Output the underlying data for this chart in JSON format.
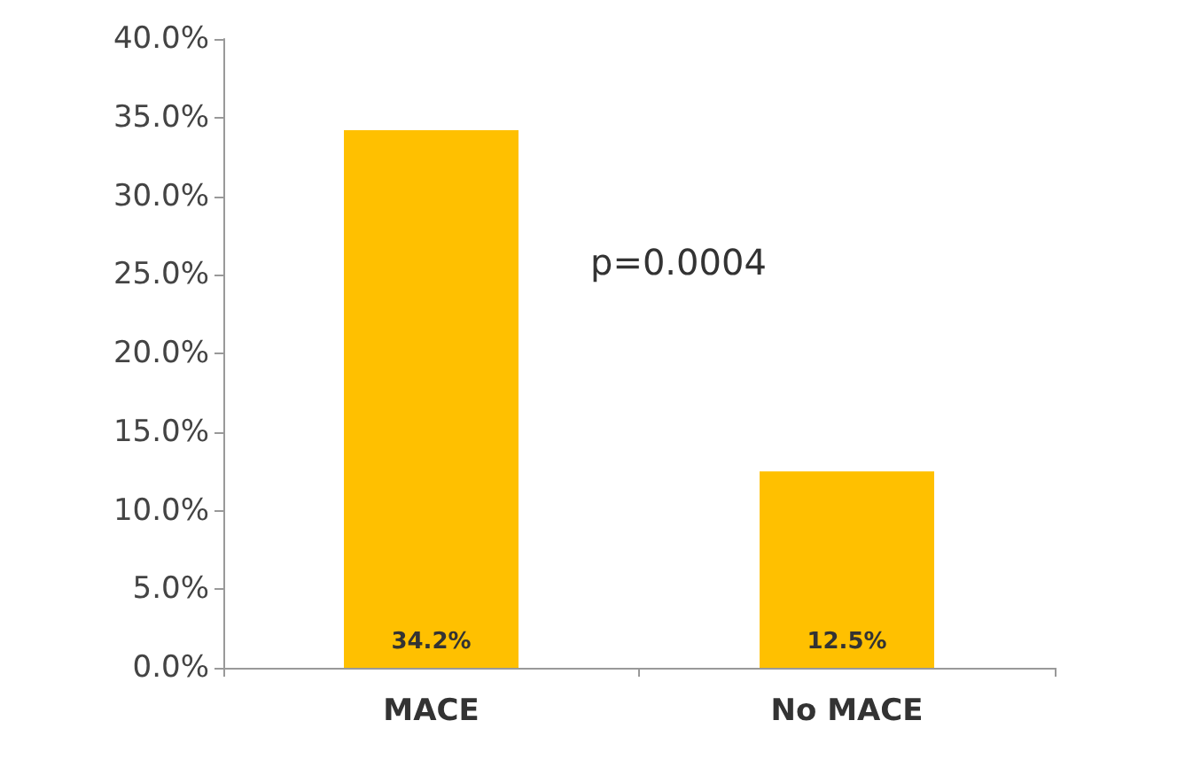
{
  "chart_data": {
    "type": "bar",
    "categories": [
      "MACE",
      "No MACE"
    ],
    "values": [
      34.2,
      12.5
    ],
    "value_labels": [
      "34.2%",
      "12.5%"
    ],
    "color": "#ffc000",
    "ylim": [
      0,
      40
    ],
    "yticks": [
      {
        "value": 0,
        "label": "0.0%"
      },
      {
        "value": 5,
        "label": "5.0%"
      },
      {
        "value": 10,
        "label": "10.0%"
      },
      {
        "value": 15,
        "label": "15.0%"
      },
      {
        "value": 20,
        "label": "20.0%"
      },
      {
        "value": 25,
        "label": "25.0%"
      },
      {
        "value": 30,
        "label": "30.0%"
      },
      {
        "value": 35,
        "label": "35.0%"
      },
      {
        "value": 40,
        "label": "40.0%"
      }
    ],
    "annotations": [
      "p=0.0004"
    ]
  }
}
